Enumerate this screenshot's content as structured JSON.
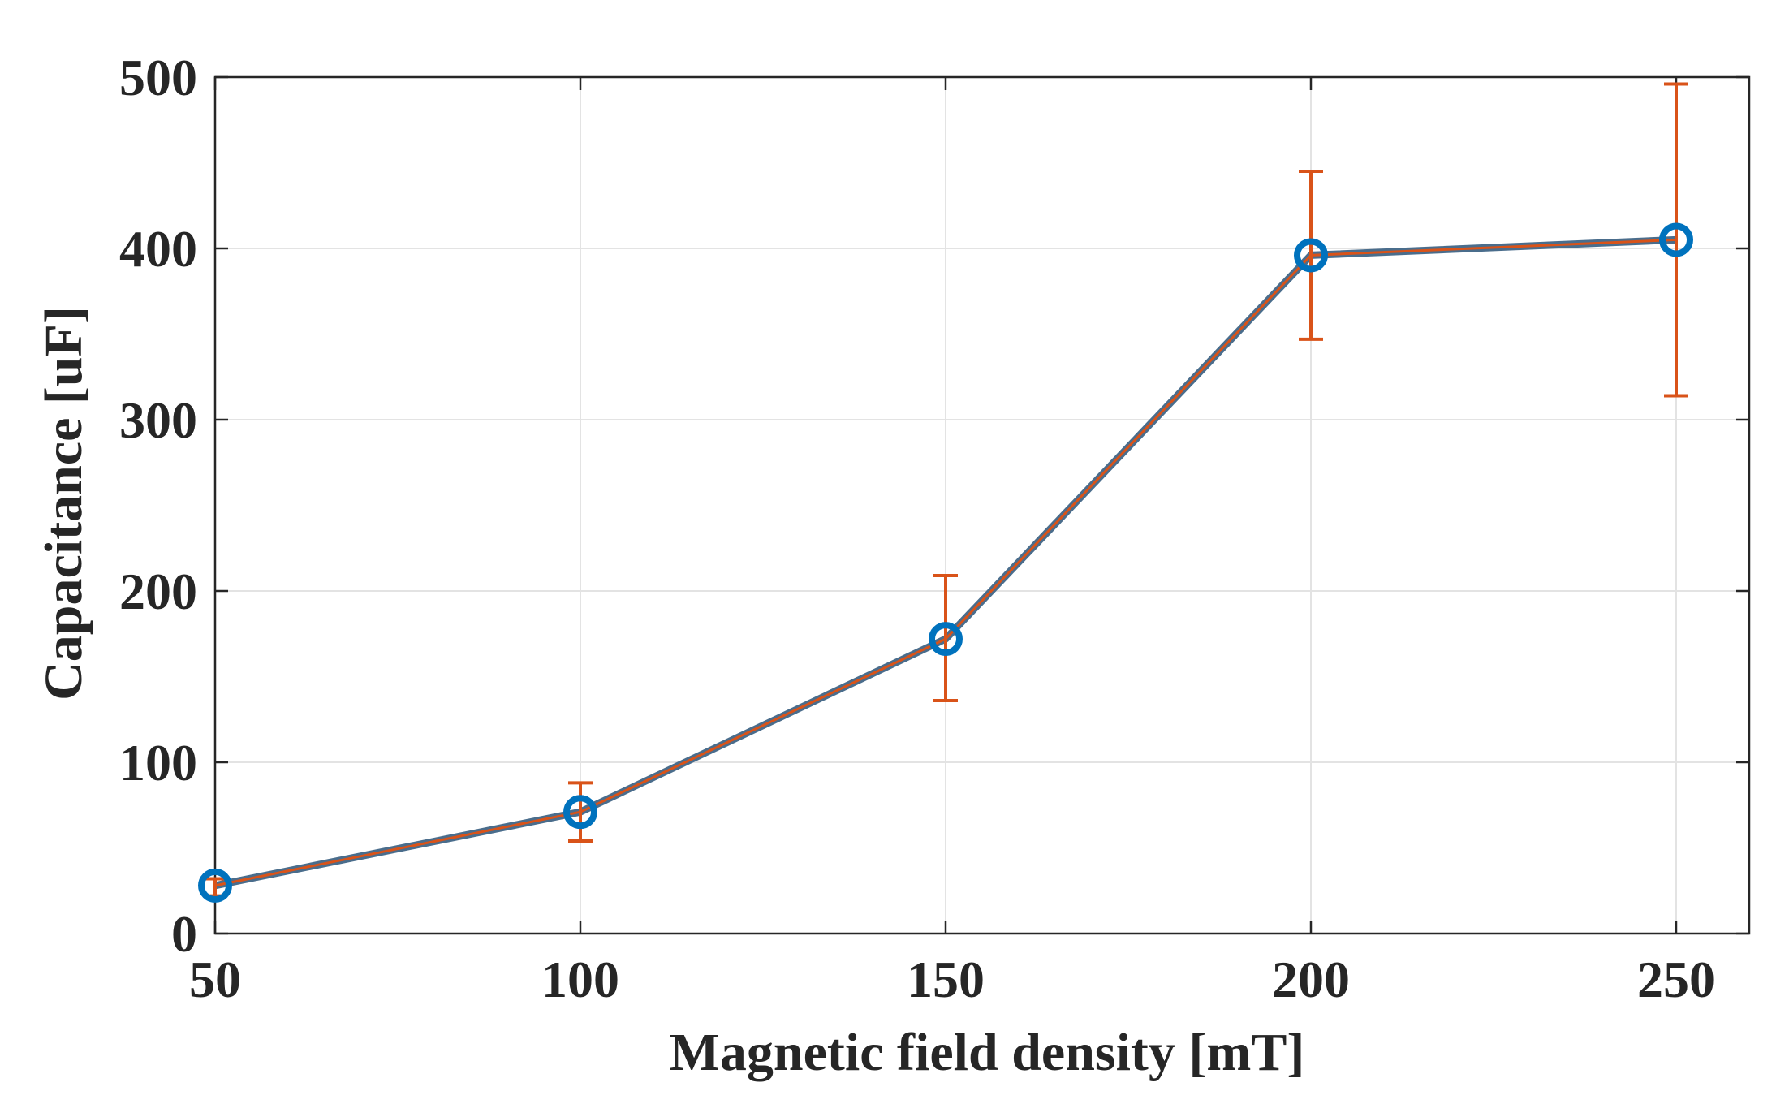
{
  "chart_data": {
    "type": "line",
    "title": "",
    "xlabel": "Magnetic field density [mT]",
    "ylabel": "Capacitance [uF]",
    "xlim": [
      50,
      260
    ],
    "ylim": [
      0,
      500
    ],
    "xticks": [
      50,
      100,
      150,
      200,
      250
    ],
    "yticks": [
      0,
      100,
      200,
      300,
      400,
      500
    ],
    "grid": true,
    "series": [
      {
        "name": "Capacitance",
        "x": [
          50,
          100,
          150,
          200,
          250
        ],
        "y": [
          28,
          71,
          172,
          396,
          405
        ],
        "error_low": [
          22,
          54,
          136,
          347,
          314
        ],
        "error_high": [
          32,
          88,
          209,
          445,
          496
        ],
        "marker": "circle",
        "line_color": "#4a6d8c",
        "line_inner_color": "#d95319",
        "marker_color": "#0072bd",
        "errorbar_color": "#d95319"
      }
    ]
  },
  "colors": {
    "axis": "#262626",
    "grid": "#e3e3e3"
  }
}
